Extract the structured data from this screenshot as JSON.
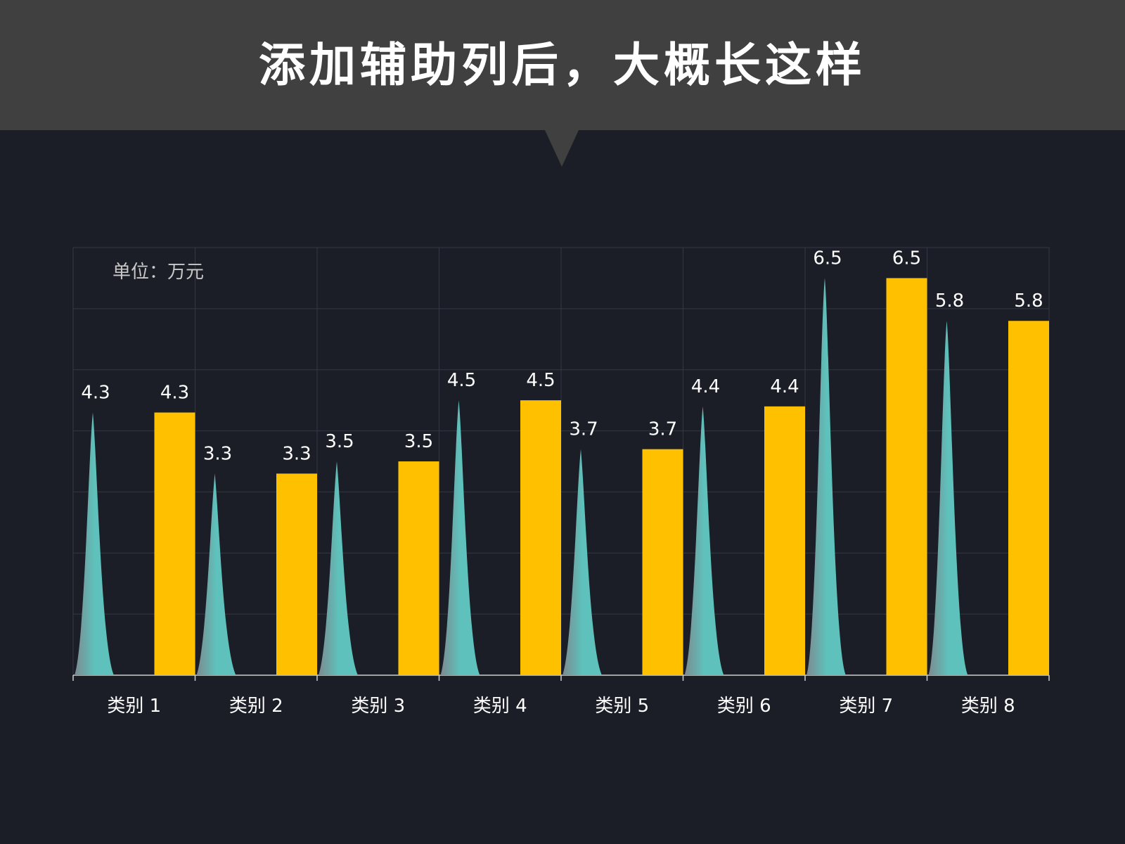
{
  "header": {
    "title": "添加辅助列后，大概长这样"
  },
  "chart_data": {
    "type": "bar",
    "unit_label": "单位：万元",
    "categories": [
      "类别 1",
      "类别 2",
      "类别 3",
      "类别 4",
      "类别 5",
      "类别 6",
      "类别 7",
      "类别 8"
    ],
    "series": [
      {
        "values": [
          4.3,
          3.3,
          3.5,
          4.5,
          3.7,
          4.4,
          6.5,
          5.8
        ],
        "mark": "spike",
        "color": "#5ec1bb"
      },
      {
        "values": [
          4.3,
          3.3,
          3.5,
          4.5,
          3.7,
          4.4,
          6.5,
          5.8
        ],
        "mark": "bar",
        "color": "#ffc000"
      }
    ],
    "ylim": [
      0,
      7
    ],
    "grid": true,
    "colors": {
      "background": "#1b1e26",
      "header": "#404040",
      "grid": "#343844",
      "axis": "#cfcfcf",
      "text": "#ffffff"
    }
  }
}
